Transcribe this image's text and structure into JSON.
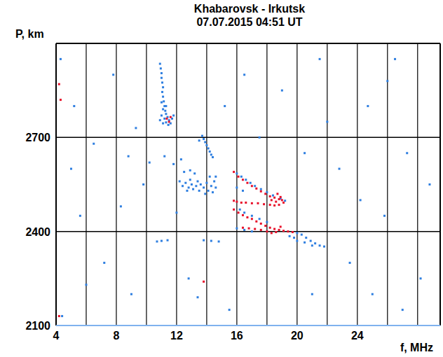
{
  "chart_data": {
    "type": "scatter",
    "title": "Khabarovsk - Irkutsk",
    "subtitle": "07.07.2015  04:51 UT",
    "x_label": "f, MHz",
    "y_label": "P, km",
    "xlim": [
      4,
      29.5
    ],
    "ylim": [
      2100,
      3000
    ],
    "xticks": [
      4,
      8,
      12,
      16,
      20,
      24
    ],
    "yticks": [
      2100,
      2400,
      2700
    ],
    "grid": true,
    "series": [
      {
        "color": "#2f7fe0",
        "marker": "square",
        "x": [
          10.9,
          10.95,
          11.0,
          11.0,
          11.05,
          11.1,
          11.05,
          11.1,
          11.15,
          11.2,
          11.1,
          11.25,
          11.3,
          11.0,
          11.4,
          11.2,
          10.9,
          11.5,
          11.3,
          11.1,
          11.6,
          11.45,
          11.7,
          11.8,
          11.3,
          11.0,
          13.7,
          13.8,
          13.9,
          14.0,
          14.1,
          14.2,
          14.3,
          14.4,
          13.5,
          12.2,
          12.4,
          12.6,
          12.8,
          13.0,
          13.1,
          13.3,
          13.5,
          13.6,
          13.8,
          14.0,
          14.1,
          14.3,
          14.5,
          14.6,
          14.4,
          13.9,
          13.4,
          12.9,
          12.5,
          12.9,
          13.2,
          14.2,
          14.6,
          12.7,
          11.8,
          12.3,
          11.2,
          16.0,
          16.3,
          16.6,
          16.9,
          17.2,
          17.6,
          18.0,
          18.4,
          18.9,
          19.2,
          16.0,
          16.4,
          16.2,
          16.5,
          17.0,
          17.5,
          18.0,
          16.0,
          16.5,
          17.0,
          20.0,
          20.3,
          20.6,
          20.9,
          21.2,
          21.5,
          21.8,
          20.5,
          21.0,
          19.8,
          20.0,
          19.5,
          4.3,
          5.2,
          6.5,
          7.8,
          9.3,
          9.8,
          5.6,
          8.3,
          7.2,
          9.0,
          11.0,
          11.4,
          10.7,
          13.8,
          14.3,
          14.8,
          12.8,
          13.4,
          15.5,
          17.5,
          19.0,
          21.5,
          22.8,
          23.5,
          24.7,
          25.8,
          26.5,
          27.3,
          28.2,
          28.8,
          27.0,
          25.0,
          22.0,
          21.0,
          24.2,
          6.0,
          4.4,
          5.0,
          26.0,
          20.5,
          15.2,
          16.5,
          12.0,
          10.2,
          8.8
        ],
        "values": [
          2935,
          2920,
          2905,
          2890,
          2875,
          2860,
          2845,
          2830,
          2815,
          2800,
          2790,
          2785,
          2775,
          2770,
          2765,
          2760,
          2755,
          2755,
          2748,
          2745,
          2745,
          2740,
          2760,
          2770,
          2800,
          2812,
          2705,
          2695,
          2685,
          2675,
          2665,
          2655,
          2645,
          2637,
          2690,
          2560,
          2545,
          2555,
          2540,
          2550,
          2535,
          2545,
          2530,
          2550,
          2540,
          2555,
          2530,
          2545,
          2560,
          2540,
          2525,
          2520,
          2560,
          2565,
          2590,
          2595,
          2585,
          2575,
          2575,
          2530,
          2615,
          2630,
          2640,
          2585,
          2575,
          2565,
          2555,
          2545,
          2535,
          2525,
          2515,
          2505,
          2498,
          2540,
          2530,
          2470,
          2460,
          2450,
          2440,
          2430,
          2410,
          2405,
          2400,
          2395,
          2390,
          2380,
          2370,
          2362,
          2355,
          2352,
          2365,
          2355,
          2380,
          2370,
          2385,
          2950,
          2800,
          2680,
          2900,
          2730,
          2550,
          2450,
          2480,
          2300,
          2200,
          2370,
          2372,
          2368,
          2372,
          2370,
          2368,
          2250,
          2190,
          2150,
          2700,
          2850,
          2950,
          2600,
          2300,
          2800,
          2450,
          2950,
          2650,
          2250,
          2550,
          2150,
          2200,
          2750,
          2200,
          2500,
          2230,
          2130,
          2600,
          2880,
          2650,
          2800,
          2900,
          2460,
          2620,
          2640
        ]
      },
      {
        "color": "#e8102a",
        "marker": "square",
        "x": [
          11.35,
          11.5,
          11.6,
          15.8,
          16.1,
          16.4,
          16.7,
          17.0,
          17.3,
          17.6,
          17.9,
          18.2,
          18.5,
          18.8,
          19.0,
          19.1,
          18.8,
          18.5,
          18.2,
          17.8,
          17.4,
          17.0,
          16.6,
          16.3,
          16.0,
          15.8,
          18.6,
          18.9,
          18.3,
          18.7,
          15.8,
          16.1,
          16.4,
          16.7,
          17.0,
          17.3,
          17.6,
          17.9,
          18.2,
          18.5,
          18.8,
          19.1,
          19.4,
          18.3,
          18.6,
          18.0,
          17.6,
          17.2,
          16.8,
          16.4,
          19.7,
          18.9,
          4.2,
          4.3,
          4.2,
          13.8
        ],
        "values": [
          2760,
          2750,
          2765,
          2590,
          2575,
          2565,
          2555,
          2545,
          2537,
          2528,
          2520,
          2512,
          2508,
          2503,
          2500,
          2492,
          2485,
          2483,
          2485,
          2487,
          2490,
          2490,
          2492,
          2492,
          2495,
          2498,
          2495,
          2510,
          2500,
          2520,
          2470,
          2460,
          2452,
          2445,
          2440,
          2432,
          2425,
          2418,
          2412,
          2408,
          2405,
          2402,
          2400,
          2395,
          2398,
          2400,
          2405,
          2408,
          2410,
          2412,
          2398,
          2415,
          2870,
          2820,
          2130,
          2240
        ]
      }
    ]
  }
}
